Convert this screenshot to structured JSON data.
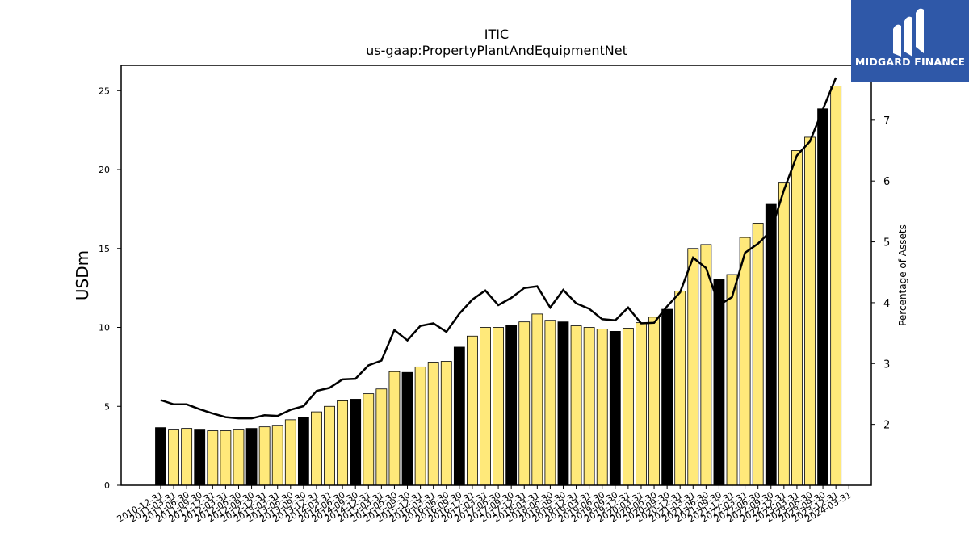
{
  "chart_data": {
    "type": "bar",
    "title": "ITIC",
    "subtitle": "us-gaap:PropertyPlantAndEquipmentNet",
    "ylabel": "USDm",
    "y2label": "Percentage of Assets",
    "ylim": [
      0,
      26.6
    ],
    "y2lim": [
      1.0,
      7.9
    ],
    "yticks": [
      0,
      5,
      10,
      15,
      20,
      25
    ],
    "y2ticks": [
      2,
      3,
      4,
      5,
      6,
      7
    ],
    "grid": false,
    "bar_colors": {
      "annual": "#000000",
      "quarter": "#ffe97a"
    },
    "line_color": "#000000",
    "categories": [
      "2010-12-31",
      "2011-03-31",
      "2011-06-30",
      "2011-09-30",
      "2011-12-31",
      "2012-03-31",
      "2012-06-30",
      "2012-09-30",
      "2012-12-31",
      "2013-03-31",
      "2013-06-30",
      "2013-09-30",
      "2013-12-31",
      "2014-03-31",
      "2014-06-30",
      "2014-09-30",
      "2014-12-31",
      "2015-03-31",
      "2015-06-30",
      "2015-09-30",
      "2015-12-31",
      "2016-03-31",
      "2016-06-30",
      "2016-09-30",
      "2016-12-31",
      "2017-03-31",
      "2017-06-30",
      "2017-09-30",
      "2017-12-31",
      "2018-03-31",
      "2018-06-30",
      "2018-09-30",
      "2018-12-31",
      "2019-03-31",
      "2019-06-30",
      "2019-09-30",
      "2019-12-31",
      "2020-03-31",
      "2020-06-30",
      "2020-09-30",
      "2020-12-31",
      "2021-03-31",
      "2021-06-30",
      "2021-09-30",
      "2021-12-31",
      "2022-03-31",
      "2022-06-30",
      "2022-09-30",
      "2022-12-31",
      "2023-03-31",
      "2023-06-30",
      "2023-09-30",
      "2023-12-31",
      "2024-03-31"
    ],
    "annual": [
      true,
      false,
      false,
      true,
      false,
      false,
      false,
      true,
      false,
      false,
      false,
      true,
      false,
      false,
      false,
      true,
      false,
      false,
      false,
      true,
      false,
      false,
      false,
      true,
      false,
      false,
      false,
      true,
      false,
      false,
      false,
      true,
      false,
      false,
      false,
      true,
      false,
      false,
      false,
      true,
      false,
      false,
      false,
      true,
      false,
      false,
      false,
      true,
      false,
      false,
      false,
      true,
      false,
      false
    ],
    "series": [
      {
        "name": "",
        "kind": "bar",
        "axis": "left",
        "values": [
          3.65,
          3.55,
          3.6,
          3.55,
          3.45,
          3.45,
          3.55,
          3.6,
          3.7,
          3.8,
          4.15,
          4.3,
          4.65,
          5.0,
          5.35,
          5.45,
          5.8,
          6.1,
          7.2,
          7.15,
          7.5,
          7.8,
          7.85,
          8.75,
          9.45,
          10.0,
          10.0,
          10.15,
          10.35,
          10.85,
          10.45,
          10.35,
          10.1,
          10.0,
          9.9,
          9.75,
          9.95,
          10.3,
          10.65,
          11.15,
          12.3,
          15.0,
          15.25,
          13.05,
          13.35,
          15.7,
          16.6,
          17.8,
          19.15,
          21.2,
          22.05,
          23.85,
          25.3,
          null
        ]
      },
      {
        "name": "",
        "kind": "line",
        "axis": "right",
        "values": [
          2.4,
          2.33,
          2.33,
          2.25,
          2.18,
          2.12,
          2.1,
          2.1,
          2.15,
          2.14,
          2.24,
          2.3,
          2.55,
          2.6,
          2.74,
          2.75,
          2.97,
          3.05,
          3.55,
          3.38,
          3.62,
          3.66,
          3.52,
          3.82,
          4.05,
          4.2,
          3.96,
          4.08,
          4.24,
          4.27,
          3.92,
          4.21,
          3.99,
          3.9,
          3.73,
          3.71,
          3.92,
          3.66,
          3.67,
          3.94,
          4.17,
          4.74,
          4.57,
          3.96,
          4.09,
          4.82,
          4.97,
          5.18,
          5.85,
          6.42,
          6.65,
          7.18,
          7.7,
          null
        ]
      }
    ]
  },
  "branding": {
    "name": "MIDGARD FINANCE",
    "logo_icon": "midgard-logo-icon",
    "background": "#2f58a8"
  }
}
